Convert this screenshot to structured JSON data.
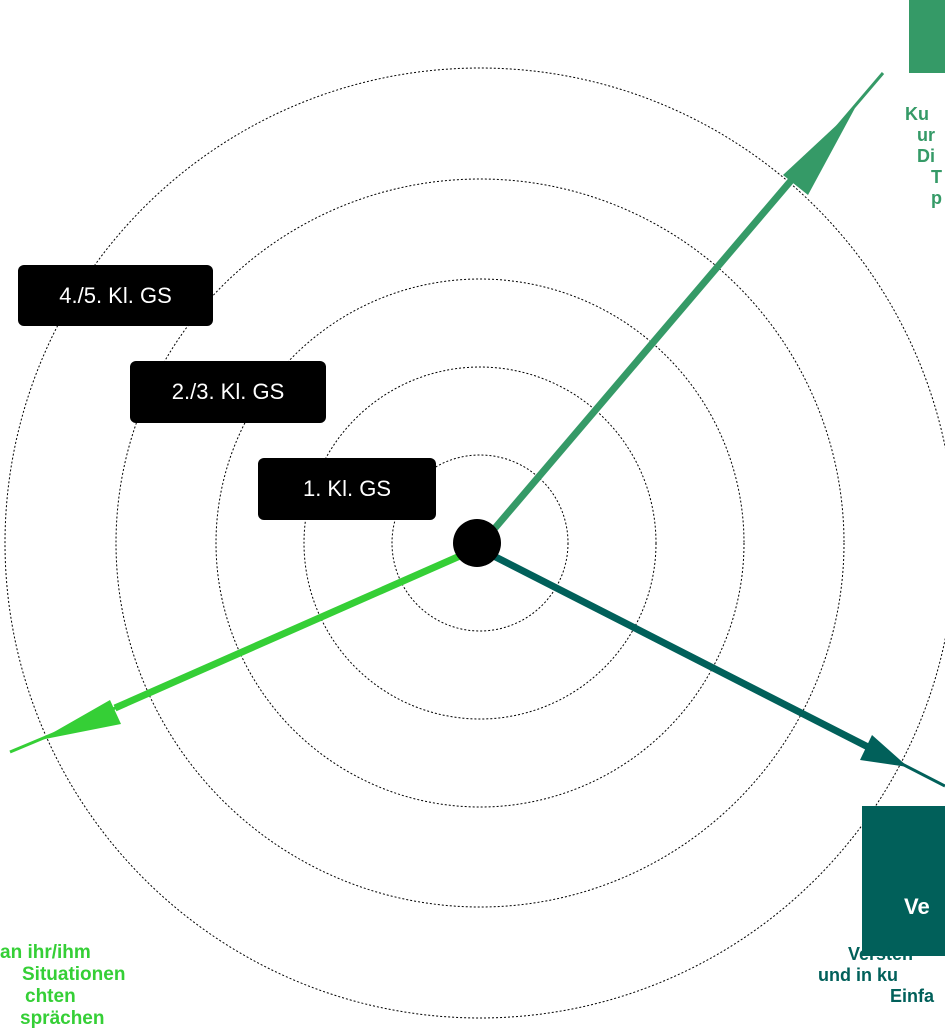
{
  "colors": {
    "axis_top": "#359a67",
    "axis_right": "#01605a",
    "axis_left": "#35cf36",
    "label_bg": "#000000",
    "text_green": "#35cf36"
  },
  "grade_labels": [
    "1. Kl. GS",
    "2./3. Kl. GS",
    "4./5. Kl. GS"
  ],
  "right_box": {
    "title": "Ve"
  },
  "top_desc": [
    "Ku",
    "ur",
    "Di",
    "T",
    "p"
  ],
  "right_desc": [
    "Versten",
    "und in ku",
    "Einfa"
  ],
  "left_desc": [
    "an ihr/ihm",
    "Situationen",
    "chten",
    "sprächen"
  ]
}
